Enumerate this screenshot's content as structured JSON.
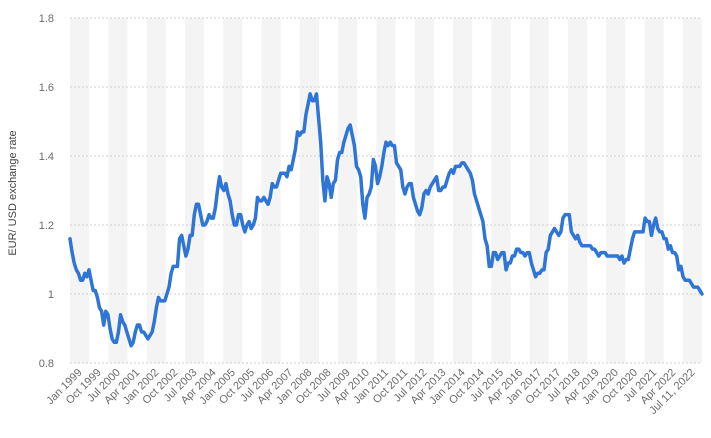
{
  "chart_data": {
    "type": "line",
    "ylabel": "EUR/ USD exchange rate",
    "xlabel": "",
    "ylim": [
      0.8,
      1.8
    ],
    "yticks": [
      0.8,
      1,
      1.2,
      1.4,
      1.6,
      1.8
    ],
    "ytick_labels": [
      "0.8",
      "1",
      "1.2",
      "1.4",
      "1.6",
      "1.8"
    ],
    "grid": "horizontal dashed, alternating vertical column bands",
    "color": "#2f75d6",
    "x_tick_labels": [
      "Jan 1999",
      "Oct 1999",
      "Jul 2000",
      "Apr 2001",
      "Jan 2002",
      "Oct 2002",
      "Jul 2003",
      "Apr 2004",
      "Jan 2005",
      "Oct 2005",
      "Jul 2006",
      "Apr 2007",
      "Jan 2008",
      "Oct 2008",
      "Jul 2009",
      "Apr 2010",
      "Jan 2011",
      "Oct 2011",
      "Jul 2012",
      "Apr 2013",
      "Jan 2014",
      "Oct 2014",
      "Jul 2015",
      "Apr 2016",
      "Jan 2017",
      "Oct 2017",
      "Jul 2018",
      "Apr 2019",
      "Jan 2020",
      "Oct 2020",
      "Jul 2021",
      "Apr 2022",
      "Jul 11, 2022"
    ],
    "series": [
      {
        "values": [
          [
            0,
            1.16
          ],
          [
            1,
            1.12
          ],
          [
            2,
            1.09
          ],
          [
            3,
            1.07
          ],
          [
            4,
            1.06
          ],
          [
            5,
            1.04
          ],
          [
            6,
            1.04
          ],
          [
            7,
            1.06
          ],
          [
            8,
            1.05
          ],
          [
            9,
            1.07
          ],
          [
            10,
            1.04
          ],
          [
            11,
            1.01
          ],
          [
            12,
            1.01
          ],
          [
            13,
            0.99
          ],
          [
            14,
            0.96
          ],
          [
            15,
            0.95
          ],
          [
            16,
            0.91
          ],
          [
            17,
            0.95
          ],
          [
            18,
            0.94
          ],
          [
            19,
            0.9
          ],
          [
            20,
            0.87
          ],
          [
            21,
            0.86
          ],
          [
            22,
            0.86
          ],
          [
            23,
            0.89
          ],
          [
            24,
            0.94
          ],
          [
            25,
            0.92
          ],
          [
            26,
            0.91
          ],
          [
            27,
            0.89
          ],
          [
            28,
            0.87
          ],
          [
            29,
            0.85
          ],
          [
            30,
            0.86
          ],
          [
            31,
            0.89
          ],
          [
            32,
            0.91
          ],
          [
            33,
            0.91
          ],
          [
            34,
            0.89
          ],
          [
            35,
            0.89
          ],
          [
            36,
            0.88
          ],
          [
            37,
            0.87
          ],
          [
            38,
            0.88
          ],
          [
            39,
            0.89
          ],
          [
            40,
            0.92
          ],
          [
            41,
            0.96
          ],
          [
            42,
            0.99
          ],
          [
            43,
            0.98
          ],
          [
            44,
            0.98
          ],
          [
            45,
            0.98
          ],
          [
            46,
            1.0
          ],
          [
            47,
            1.02
          ],
          [
            48,
            1.06
          ],
          [
            49,
            1.08
          ],
          [
            50,
            1.08
          ],
          [
            51,
            1.08
          ],
          [
            52,
            1.16
          ],
          [
            53,
            1.17
          ],
          [
            54,
            1.14
          ],
          [
            55,
            1.11
          ],
          [
            56,
            1.13
          ],
          [
            57,
            1.17
          ],
          [
            58,
            1.17
          ],
          [
            59,
            1.23
          ],
          [
            60,
            1.26
          ],
          [
            61,
            1.26
          ],
          [
            62,
            1.23
          ],
          [
            63,
            1.2
          ],
          [
            64,
            1.2
          ],
          [
            65,
            1.21
          ],
          [
            66,
            1.23
          ],
          [
            67,
            1.22
          ],
          [
            68,
            1.22
          ],
          [
            69,
            1.25
          ],
          [
            70,
            1.3
          ],
          [
            71,
            1.34
          ],
          [
            72,
            1.31
          ],
          [
            73,
            1.3
          ],
          [
            74,
            1.32
          ],
          [
            75,
            1.29
          ],
          [
            76,
            1.27
          ],
          [
            77,
            1.23
          ],
          [
            78,
            1.2
          ],
          [
            79,
            1.2
          ],
          [
            80,
            1.23
          ],
          [
            81,
            1.23
          ],
          [
            82,
            1.2
          ],
          [
            83,
            1.18
          ],
          [
            84,
            1.2
          ],
          [
            85,
            1.21
          ],
          [
            86,
            1.19
          ],
          [
            87,
            1.2
          ],
          [
            88,
            1.22
          ],
          [
            89,
            1.28
          ],
          [
            90,
            1.27
          ],
          [
            91,
            1.27
          ],
          [
            92,
            1.28
          ],
          [
            93,
            1.27
          ],
          [
            94,
            1.26
          ],
          [
            95,
            1.28
          ],
          [
            96,
            1.32
          ],
          [
            97,
            1.31
          ],
          [
            98,
            1.31
          ],
          [
            99,
            1.33
          ],
          [
            100,
            1.35
          ],
          [
            101,
            1.35
          ],
          [
            102,
            1.35
          ],
          [
            103,
            1.34
          ],
          [
            104,
            1.37
          ],
          [
            105,
            1.36
          ],
          [
            106,
            1.39
          ],
          [
            107,
            1.42
          ],
          [
            108,
            1.47
          ],
          [
            109,
            1.46
          ],
          [
            110,
            1.47
          ],
          [
            111,
            1.47
          ],
          [
            112,
            1.52
          ],
          [
            113,
            1.55
          ],
          [
            114,
            1.58
          ],
          [
            115,
            1.56
          ],
          [
            116,
            1.56
          ],
          [
            117,
            1.58
          ],
          [
            118,
            1.51
          ],
          [
            119,
            1.44
          ],
          [
            120,
            1.33
          ],
          [
            121,
            1.27
          ],
          [
            122,
            1.34
          ],
          [
            123,
            1.32
          ],
          [
            124,
            1.28
          ],
          [
            125,
            1.32
          ],
          [
            126,
            1.33
          ],
          [
            127,
            1.39
          ],
          [
            128,
            1.41
          ],
          [
            129,
            1.41
          ],
          [
            130,
            1.44
          ],
          [
            131,
            1.46
          ],
          [
            132,
            1.48
          ],
          [
            133,
            1.49
          ],
          [
            134,
            1.46
          ],
          [
            135,
            1.43
          ],
          [
            136,
            1.37
          ],
          [
            137,
            1.36
          ],
          [
            138,
            1.34
          ],
          [
            139,
            1.26
          ],
          [
            140,
            1.22
          ],
          [
            141,
            1.28
          ],
          [
            142,
            1.29
          ],
          [
            143,
            1.31
          ],
          [
            144,
            1.39
          ],
          [
            145,
            1.37
          ],
          [
            146,
            1.32
          ],
          [
            147,
            1.34
          ],
          [
            148,
            1.37
          ],
          [
            149,
            1.41
          ],
          [
            150,
            1.44
          ],
          [
            151,
            1.43
          ],
          [
            152,
            1.44
          ],
          [
            153,
            1.43
          ],
          [
            154,
            1.43
          ],
          [
            155,
            1.38
          ],
          [
            156,
            1.37
          ],
          [
            157,
            1.36
          ],
          [
            158,
            1.31
          ],
          [
            159,
            1.29
          ],
          [
            160,
            1.31
          ],
          [
            161,
            1.32
          ],
          [
            162,
            1.32
          ],
          [
            163,
            1.28
          ],
          [
            164,
            1.26
          ],
          [
            165,
            1.24
          ],
          [
            166,
            1.23
          ],
          [
            167,
            1.25
          ],
          [
            168,
            1.29
          ],
          [
            169,
            1.3
          ],
          [
            170,
            1.29
          ],
          [
            171,
            1.31
          ],
          [
            172,
            1.32
          ],
          [
            173,
            1.33
          ],
          [
            174,
            1.34
          ],
          [
            175,
            1.3
          ],
          [
            176,
            1.3
          ],
          [
            177,
            1.31
          ],
          [
            178,
            1.31
          ],
          [
            179,
            1.33
          ],
          [
            180,
            1.35
          ],
          [
            181,
            1.36
          ],
          [
            182,
            1.35
          ],
          [
            183,
            1.37
          ],
          [
            184,
            1.37
          ],
          [
            185,
            1.37
          ],
          [
            186,
            1.38
          ],
          [
            187,
            1.38
          ],
          [
            188,
            1.37
          ],
          [
            189,
            1.36
          ],
          [
            190,
            1.35
          ],
          [
            191,
            1.33
          ],
          [
            192,
            1.29
          ],
          [
            193,
            1.27
          ],
          [
            194,
            1.25
          ],
          [
            195,
            1.23
          ],
          [
            196,
            1.21
          ],
          [
            197,
            1.16
          ],
          [
            198,
            1.14
          ],
          [
            199,
            1.08
          ],
          [
            200,
            1.08
          ],
          [
            201,
            1.12
          ],
          [
            202,
            1.12
          ],
          [
            203,
            1.1
          ],
          [
            204,
            1.11
          ],
          [
            205,
            1.12
          ],
          [
            206,
            1.12
          ],
          [
            207,
            1.07
          ],
          [
            208,
            1.09
          ],
          [
            209,
            1.09
          ],
          [
            210,
            1.11
          ],
          [
            211,
            1.11
          ],
          [
            212,
            1.13
          ],
          [
            213,
            1.13
          ],
          [
            214,
            1.12
          ],
          [
            215,
            1.12
          ],
          [
            216,
            1.11
          ],
          [
            217,
            1.12
          ],
          [
            218,
            1.12
          ],
          [
            219,
            1.09
          ],
          [
            220,
            1.07
          ],
          [
            221,
            1.05
          ],
          [
            222,
            1.06
          ],
          [
            223,
            1.06
          ],
          [
            224,
            1.07
          ],
          [
            225,
            1.07
          ],
          [
            226,
            1.12
          ],
          [
            227,
            1.13
          ],
          [
            228,
            1.17
          ],
          [
            229,
            1.18
          ],
          [
            230,
            1.19
          ],
          [
            231,
            1.18
          ],
          [
            232,
            1.17
          ],
          [
            233,
            1.18
          ],
          [
            234,
            1.22
          ],
          [
            235,
            1.23
          ],
          [
            236,
            1.23
          ],
          [
            237,
            1.23
          ],
          [
            238,
            1.18
          ],
          [
            239,
            1.17
          ],
          [
            240,
            1.16
          ],
          [
            241,
            1.17
          ],
          [
            242,
            1.15
          ],
          [
            243,
            1.14
          ],
          [
            244,
            1.14
          ],
          [
            245,
            1.14
          ],
          [
            246,
            1.14
          ],
          [
            247,
            1.14
          ],
          [
            248,
            1.13
          ],
          [
            249,
            1.13
          ],
          [
            250,
            1.12
          ],
          [
            251,
            1.11
          ],
          [
            252,
            1.12
          ],
          [
            253,
            1.12
          ],
          [
            254,
            1.12
          ],
          [
            255,
            1.11
          ],
          [
            256,
            1.11
          ],
          [
            257,
            1.11
          ],
          [
            258,
            1.11
          ],
          [
            259,
            1.11
          ],
          [
            260,
            1.11
          ],
          [
            261,
            1.1
          ],
          [
            262,
            1.11
          ],
          [
            263,
            1.09
          ],
          [
            264,
            1.1
          ],
          [
            265,
            1.1
          ],
          [
            266,
            1.13
          ],
          [
            267,
            1.16
          ],
          [
            268,
            1.18
          ],
          [
            269,
            1.18
          ],
          [
            270,
            1.18
          ],
          [
            271,
            1.18
          ],
          [
            272,
            1.18
          ],
          [
            273,
            1.22
          ],
          [
            274,
            1.21
          ],
          [
            275,
            1.21
          ],
          [
            276,
            1.17
          ],
          [
            277,
            1.2
          ],
          [
            278,
            1.22
          ],
          [
            279,
            1.19
          ],
          [
            280,
            1.18
          ],
          [
            281,
            1.18
          ],
          [
            282,
            1.16
          ],
          [
            283,
            1.16
          ],
          [
            284,
            1.13
          ],
          [
            285,
            1.14
          ],
          [
            286,
            1.12
          ],
          [
            287,
            1.12
          ],
          [
            288,
            1.11
          ],
          [
            289,
            1.07
          ],
          [
            290,
            1.08
          ],
          [
            291,
            1.05
          ],
          [
            292,
            1.04
          ],
          [
            293,
            1.04
          ],
          [
            294,
            1.04
          ],
          [
            295,
            1.03
          ],
          [
            296,
            1.02
          ],
          [
            297,
            1.02
          ],
          [
            298,
            1.02
          ],
          [
            299,
            1.01
          ],
          [
            300,
            1.0
          ]
        ]
      }
    ]
  }
}
